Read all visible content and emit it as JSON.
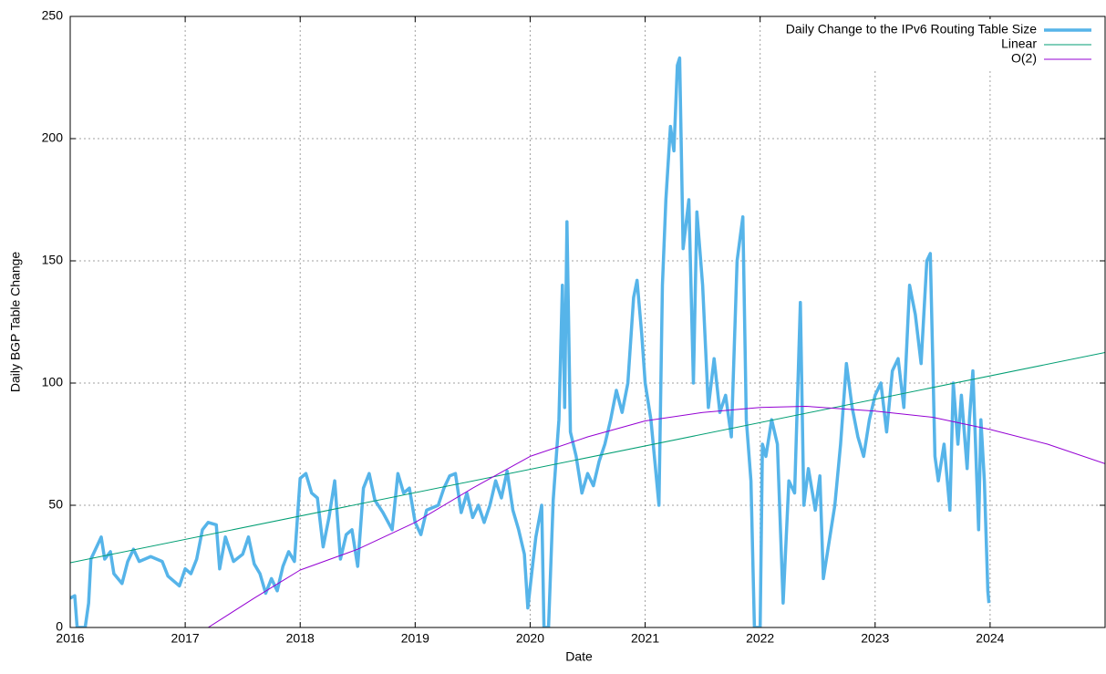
{
  "chart_data": {
    "type": "line",
    "xlabel": "Date",
    "ylabel": "Daily BGP Table Change",
    "xlim": [
      2016,
      2025
    ],
    "xticks": [
      2016,
      2017,
      2018,
      2019,
      2020,
      2021,
      2022,
      2023,
      2024
    ],
    "ylim": [
      0,
      250
    ],
    "yticks": [
      0,
      50,
      100,
      150,
      200,
      250
    ],
    "grid": true,
    "legend": "top-right",
    "series": [
      {
        "name": "Daily Change to the IPv6 Routing Table Size",
        "color": "#56b4e9",
        "x": [
          2016.0,
          2016.04,
          2016.06,
          2016.13,
          2016.16,
          2016.18,
          2016.23,
          2016.27,
          2016.3,
          2016.35,
          2016.38,
          2016.45,
          2016.5,
          2016.55,
          2016.6,
          2016.7,
          2016.8,
          2016.85,
          2016.95,
          2017.0,
          2017.05,
          2017.1,
          2017.15,
          2017.2,
          2017.27,
          2017.3,
          2017.35,
          2017.42,
          2017.5,
          2017.55,
          2017.6,
          2017.65,
          2017.7,
          2017.75,
          2017.8,
          2017.85,
          2017.9,
          2017.95,
          2018.0,
          2018.05,
          2018.1,
          2018.15,
          2018.2,
          2018.25,
          2018.3,
          2018.35,
          2018.4,
          2018.45,
          2018.5,
          2018.55,
          2018.6,
          2018.65,
          2018.72,
          2018.8,
          2018.85,
          2018.9,
          2018.95,
          2019.0,
          2019.05,
          2019.1,
          2019.2,
          2019.25,
          2019.3,
          2019.35,
          2019.4,
          2019.45,
          2019.5,
          2019.55,
          2019.6,
          2019.65,
          2019.7,
          2019.75,
          2019.8,
          2019.85,
          2019.9,
          2019.95,
          2019.98,
          2020.02,
          2020.05,
          2020.1,
          2020.12,
          2020.16,
          2020.2,
          2020.25,
          2020.28,
          2020.3,
          2020.32,
          2020.35,
          2020.4,
          2020.45,
          2020.5,
          2020.55,
          2020.6,
          2020.65,
          2020.7,
          2020.75,
          2020.8,
          2020.85,
          2020.9,
          2020.93,
          2020.97,
          2021.0,
          2021.05,
          2021.1,
          2021.12,
          2021.15,
          2021.18,
          2021.22,
          2021.25,
          2021.28,
          2021.3,
          2021.33,
          2021.38,
          2021.42,
          2021.45,
          2021.5,
          2021.55,
          2021.6,
          2021.65,
          2021.7,
          2021.75,
          2021.8,
          2021.85,
          2021.88,
          2021.92,
          2021.95,
          2022.0,
          2022.02,
          2022.05,
          2022.1,
          2022.15,
          2022.2,
          2022.25,
          2022.3,
          2022.35,
          2022.38,
          2022.42,
          2022.48,
          2022.52,
          2022.55,
          2022.6,
          2022.65,
          2022.7,
          2022.75,
          2022.8,
          2022.85,
          2022.9,
          2022.95,
          2023.0,
          2023.05,
          2023.1,
          2023.15,
          2023.2,
          2023.25,
          2023.3,
          2023.35,
          2023.4,
          2023.45,
          2023.48,
          2023.52,
          2023.55,
          2023.6,
          2023.65,
          2023.68,
          2023.72,
          2023.75,
          2023.8,
          2023.82,
          2023.85,
          2023.9,
          2023.92,
          2023.95,
          2023.98,
          2023.99
        ],
        "values": [
          12,
          13,
          0,
          0,
          10,
          28,
          33,
          37,
          28,
          31,
          22,
          18,
          27,
          32,
          27,
          29,
          27,
          21,
          17,
          24,
          22,
          28,
          40,
          43,
          42,
          24,
          37,
          27,
          30,
          37,
          26,
          22,
          14,
          20,
          15,
          25,
          31,
          27,
          61,
          63,
          55,
          53,
          33,
          45,
          60,
          28,
          38,
          40,
          25,
          57,
          63,
          52,
          47,
          40,
          63,
          55,
          57,
          43,
          38,
          48,
          50,
          57,
          62,
          63,
          47,
          55,
          45,
          50,
          43,
          50,
          60,
          53,
          64,
          48,
          40,
          30,
          8,
          25,
          37,
          50,
          0,
          0,
          52,
          85,
          140,
          90,
          166,
          80,
          70,
          55,
          63,
          58,
          68,
          75,
          85,
          97,
          88,
          100,
          135,
          142,
          120,
          100,
          85,
          60,
          50,
          140,
          175,
          205,
          195,
          230,
          233,
          155,
          175,
          100,
          170,
          140,
          90,
          110,
          88,
          95,
          78,
          150,
          168,
          85,
          60,
          0,
          0,
          75,
          70,
          85,
          75,
          10,
          60,
          55,
          133,
          50,
          65,
          48,
          62,
          20,
          35,
          50,
          75,
          108,
          90,
          78,
          70,
          85,
          95,
          100,
          80,
          105,
          110,
          90,
          140,
          128,
          108,
          150,
          153,
          70,
          60,
          75,
          48,
          100,
          75,
          95,
          65,
          85,
          105,
          40,
          85,
          60,
          15,
          10
        ]
      },
      {
        "name": "Linear",
        "color": "#009e73",
        "x": [
          2016,
          2025
        ],
        "values": [
          26.5,
          112.5
        ]
      },
      {
        "name": "O(2)",
        "color": "#9400d3",
        "x": [
          2017.2,
          2017.6,
          2018.0,
          2018.5,
          2019.0,
          2019.5,
          2020.0,
          2020.5,
          2021.0,
          2021.5,
          2022.0,
          2022.4,
          2023.0,
          2023.5,
          2024.0,
          2024.5,
          2025.0
        ],
        "values": [
          0,
          12,
          23.5,
          32,
          43,
          57,
          70,
          78,
          84.5,
          88,
          90,
          90.5,
          88.5,
          86,
          81,
          75,
          67
        ]
      }
    ]
  }
}
